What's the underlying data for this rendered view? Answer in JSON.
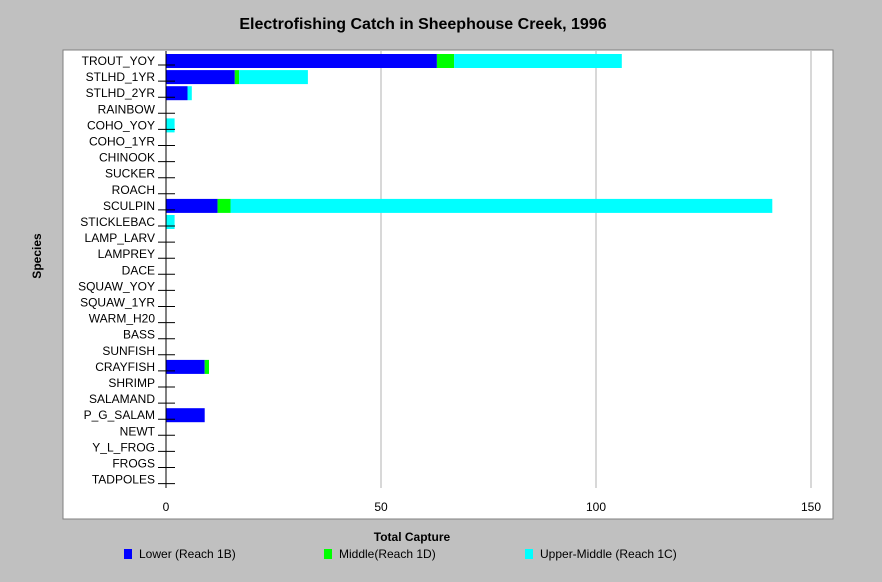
{
  "chart_data": {
    "type": "bar",
    "orientation": "horizontal",
    "stacked": true,
    "title": "Electrofishing Catch in Sheephouse Creek, 1996",
    "xlabel": "Total Capture",
    "ylabel": "Species",
    "xlim": [
      0,
      150
    ],
    "x_ticks": [
      "0",
      "50",
      "100",
      "150"
    ],
    "grid": true,
    "legend_position": "bottom",
    "categories": [
      "TROUT_YOY",
      "STLHD_1YR",
      "STLHD_2YR",
      "RAINBOW",
      "COHO_YOY",
      "COHO_1YR",
      "CHINOOK",
      "SUCKER",
      "ROACH",
      "SCULPIN",
      "STICKLEBAC",
      "LAMP_LARV",
      "LAMPREY",
      "DACE",
      "SQUAW_YOY",
      "SQUAW_1YR",
      "WARM_H20",
      "BASS",
      "SUNFISH",
      "CRAYFISH",
      "SHRIMP",
      "SALAMAND",
      "P_G_SALAM",
      "NEWT",
      "Y_L_FROG",
      "FROGS",
      "TADPOLES"
    ],
    "series": [
      {
        "name": "Lower  (Reach 1B)",
        "color": "#0000ff",
        "values": [
          63,
          16,
          5,
          0,
          0,
          0,
          0,
          0,
          0,
          12,
          0,
          0,
          0,
          0,
          0,
          0,
          0,
          0,
          0,
          9,
          0,
          0,
          9,
          0,
          0,
          0,
          0
        ]
      },
      {
        "name": "Middle(Reach 1D)",
        "color": "#00ff00",
        "values": [
          4,
          1,
          0,
          0,
          0,
          0,
          0,
          0,
          0,
          3,
          0,
          0,
          0,
          0,
          0,
          0,
          0,
          0,
          0,
          1,
          0,
          0,
          0,
          0,
          0,
          0,
          0
        ]
      },
      {
        "name": "Upper-Middle (Reach 1C)",
        "color": "#00ffff",
        "values": [
          39,
          16,
          1,
          0,
          2,
          0,
          0,
          0,
          0,
          126,
          2,
          0,
          0,
          0,
          0,
          0,
          0,
          0,
          0,
          0,
          0,
          0,
          0,
          0,
          0,
          0,
          0
        ]
      }
    ]
  }
}
